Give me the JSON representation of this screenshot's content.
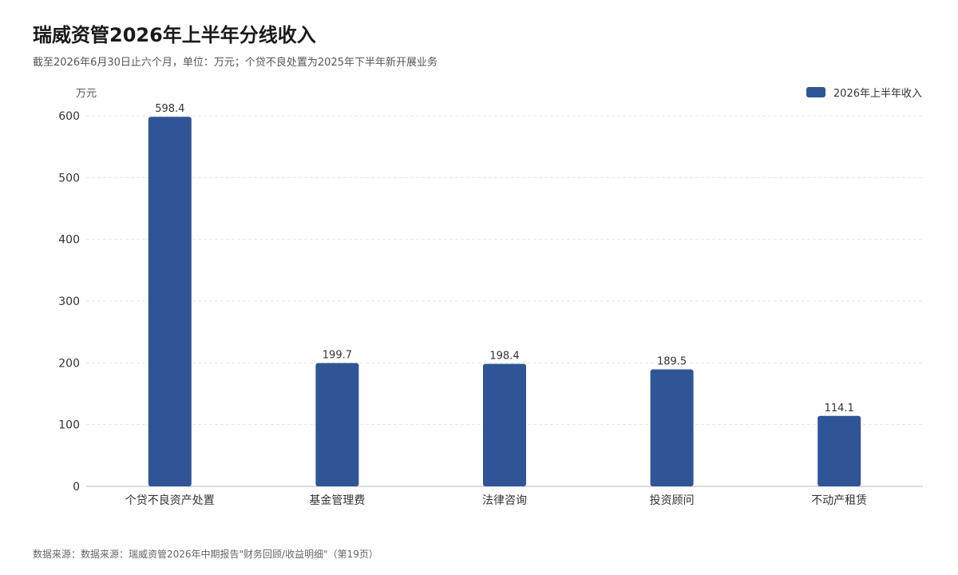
{
  "title": "瑞威资管2026年上半年分线收入",
  "subtitle": "截至2026年6月30日止六个月，单位：万元；个贷不良处置为2025年下半年新开展业务",
  "source": "数据来源：数据来源：瑞威资管2026年中期报告\"财务回顾/收益明细\"（第19页）",
  "colors": {
    "bar": "#2f5597",
    "grid": "#e6e6e6",
    "axis": "#bbbbbb",
    "tick_text": "#333333",
    "value_text": "#333333"
  },
  "chart_data": {
    "type": "bar",
    "categories": [
      "个贷不良资产处置",
      "基金管理费",
      "法律咨询",
      "投资顾问",
      "不动产租赁"
    ],
    "series": [
      {
        "name": "2026年上半年收入",
        "values": [
          598.4,
          199.7,
          198.4,
          189.5,
          114.1
        ]
      }
    ],
    "ylabel": "万元",
    "ylim": [
      0,
      600
    ],
    "yticks": [
      0,
      100,
      200,
      300,
      400,
      500,
      600
    ],
    "grid": true,
    "legend": "top-right",
    "data_labels": [
      "598.4",
      "199.7",
      "198.4",
      "189.5",
      "114.1"
    ]
  }
}
